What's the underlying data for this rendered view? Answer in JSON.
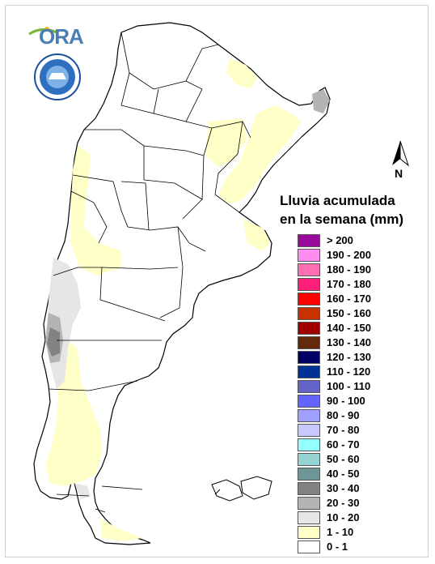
{
  "map": {
    "title_line1": "Lluvia acumulada",
    "title_line2": "en la semana (mm)",
    "north_label": "N",
    "logo_text": "ORA",
    "base_color": "#ffffff",
    "border_color": "#000000"
  },
  "legend": {
    "items": [
      {
        "label": "> 200",
        "color": "#9a0a9a"
      },
      {
        "label": "190 - 200",
        "color": "#ff8cf0"
      },
      {
        "label": "180 - 190",
        "color": "#ff6eb0"
      },
      {
        "label": "170 - 180",
        "color": "#ff1e78"
      },
      {
        "label": "160 - 170",
        "color": "#ff0000"
      },
      {
        "label": "150 - 160",
        "color": "#c83200"
      },
      {
        "label": "140 - 150",
        "color": "#a00000"
      },
      {
        "label": "130 - 140",
        "color": "#64280a"
      },
      {
        "label": "120 - 130",
        "color": "#000064"
      },
      {
        "label": "110 - 120",
        "color": "#003296"
      },
      {
        "label": "100 - 110",
        "color": "#6464c8"
      },
      {
        "label": "90 - 100",
        "color": "#6464ff"
      },
      {
        "label": "80 - 90",
        "color": "#a0a0ff"
      },
      {
        "label": "70 - 80",
        "color": "#c8c8ff"
      },
      {
        "label": "60 - 70",
        "color": "#96ffff"
      },
      {
        "label": "50 - 60",
        "color": "#96d2d2"
      },
      {
        "label": "40 - 50",
        "color": "#6e9696"
      },
      {
        "label": "30 - 40",
        "color": "#828282"
      },
      {
        "label": "20 - 30",
        "color": "#b4b4b4"
      },
      {
        "label": "10 - 20",
        "color": "#e6e6e6"
      },
      {
        "label": "1 - 10",
        "color": "#ffffc8"
      },
      {
        "label": "0 - 1",
        "color": "#ffffff"
      }
    ]
  }
}
